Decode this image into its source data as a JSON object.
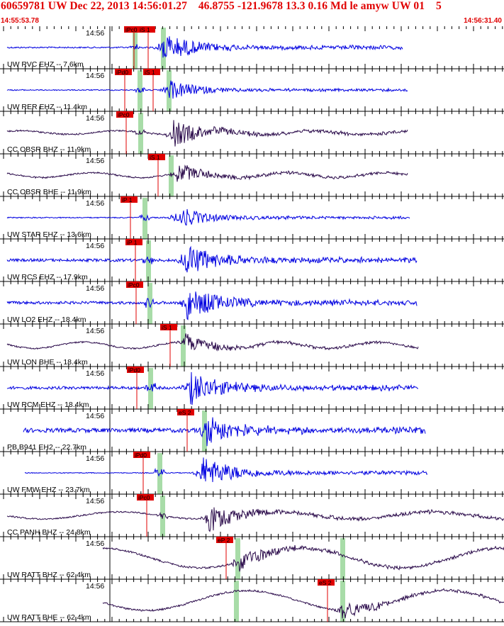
{
  "header": {
    "title": "60659781 UW Dec 22, 2013 14:56:01.27    46.8755 -121.9678 13.3 0.16 Md le amyw UW 01    5",
    "start_time": "14:55:53.78",
    "end_time": "14:56:31.40"
  },
  "colors": {
    "title": "#e00000",
    "pick_box": "#e00000",
    "pick_line": "#e00000",
    "short_period_trace": "#0000e0",
    "broadband_trace": "#2a0a4a",
    "theoretical_band": "#a8dca8",
    "tick": "#000000"
  },
  "minute_label": "14:56",
  "traces": [
    {
      "label": "UW RVC EHZ -- 7.6km",
      "type": "sp",
      "picks": [
        {
          "text": "iPc0",
          "g": 190,
          "b": 185
        },
        {
          "text": "iS 1",
          "g": 230,
          "b": 205
        }
      ],
      "event": 230,
      "end": 568,
      "start": 10,
      "noise": 2.0,
      "signal": 20
    },
    {
      "label": "UW RER EHZ -- 11.4km",
      "type": "sp",
      "picks": [
        {
          "text": "iPd0",
          "g": 197,
          "b": 172
        },
        {
          "text": "iS 1",
          "g": 238,
          "b": 212
        }
      ],
      "event": 238,
      "end": 575,
      "start": 10,
      "noise": 1.5,
      "signal": 13
    },
    {
      "label": "CC OBSR BHZ -- 11.9km",
      "type": "bb",
      "picks": [
        {
          "text": "iPc0",
          "g": 198,
          "b": 174
        }
      ],
      "event": 245,
      "end": 575,
      "start": 10,
      "noise": 2.5,
      "signal": 17
    },
    {
      "label": "CC OBSR BHE -- 11.9km",
      "type": "bb",
      "picks": [
        {
          "text": "iS 1",
          "g": 241,
          "b": 219
        }
      ],
      "event": 250,
      "end": 575,
      "start": 10,
      "noise": 3.5,
      "signal": 12
    },
    {
      "label": "UW STAR EHZ -- 13.6km",
      "type": "sp",
      "picks": [
        {
          "text": "iP 1",
          "g": 204,
          "b": 180
        }
      ],
      "event": 250,
      "end": 578,
      "start": 10,
      "noise": 1.5,
      "signal": 14
    },
    {
      "label": "UW RCS EHZ -- 17.9km",
      "type": "sp",
      "picks": [
        {
          "text": "iP 1",
          "g": 209,
          "b": 187
        }
      ],
      "event": 262,
      "end": 588,
      "start": 10,
      "noise": 4.0,
      "signal": 22
    },
    {
      "label": "UW LO2 EHZ -- 18.4km",
      "type": "sp",
      "picks": [
        {
          "text": "iPc0",
          "g": 211,
          "b": 188
        }
      ],
      "event": 264,
      "end": 588,
      "start": 10,
      "noise": 4.0,
      "signal": 22
    },
    {
      "label": "UW LON BHE -- 18.4km",
      "type": "bb",
      "picks": [
        {
          "text": "iS 1",
          "g": 258,
          "b": 236
        }
      ],
      "event": 262,
      "end": 590,
      "start": 10,
      "noise": 4.5,
      "signal": 12
    },
    {
      "label": "UW RCM EHZ -- 18.4km",
      "type": "sp",
      "picks": [
        {
          "text": "iPd0",
          "g": 212,
          "b": 189
        }
      ],
      "event": 268,
      "end": 590,
      "start": 10,
      "noise": 4.0,
      "signal": 22
    },
    {
      "label": "PB B941 EH2 -- 22.7km",
      "type": "sp",
      "picks": [
        {
          "text": "eS 2",
          "g": 288,
          "b": 260
        }
      ],
      "event": 290,
      "end": 600,
      "start": 33,
      "noise": 6.0,
      "signal": 22
    },
    {
      "label": "UW FMW EHZ -- 23.7km",
      "type": "sp",
      "picks": [
        {
          "text": "iPd0",
          "g": 225,
          "b": 198
        }
      ],
      "event": 285,
      "end": 603,
      "start": 35,
      "noise": 1.2,
      "signal": 22
    },
    {
      "label": "CC PANH BHZ -- 24.8km",
      "type": "bb",
      "picks": [
        {
          "text": "iPc0",
          "g": 229,
          "b": 203
        }
      ],
      "event": 292,
      "end": 711,
      "start": 10,
      "noise": 3.0,
      "signal": 18
    },
    {
      "label": "UW RATT BHZ -- 62.4km",
      "type": "bb",
      "picks": [
        {
          "text": "eP 2",
          "g": 335,
          "b": 315
        },
        {
          "text": "",
          "g": 483,
          "b": 483
        }
      ],
      "event": 338,
      "end": 711,
      "start": 145,
      "noise": 3.0,
      "signal": 14
    },
    {
      "label": "UW RATT BHE -- 62.4km",
      "type": "bb",
      "picks": [
        {
          "text": "eS 2",
          "g": 483,
          "b": 458
        },
        {
          "text": "",
          "g": 333,
          "b": 333
        }
      ],
      "event": 483,
      "end": 711,
      "start": 145,
      "noise": 3.5,
      "signal": 12
    }
  ]
}
